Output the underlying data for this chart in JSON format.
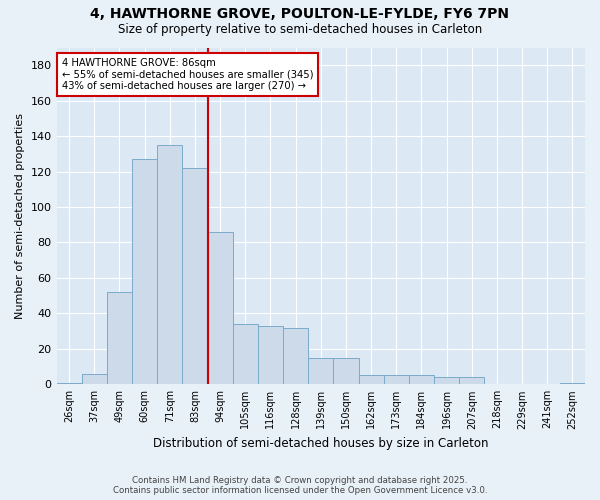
{
  "title_line1": "4, HAWTHORNE GROVE, POULTON-LE-FYLDE, FY6 7PN",
  "title_line2": "Size of property relative to semi-detached houses in Carleton",
  "xlabel": "Distribution of semi-detached houses by size in Carleton",
  "ylabel": "Number of semi-detached properties",
  "bin_labels": [
    "26sqm",
    "37sqm",
    "49sqm",
    "60sqm",
    "71sqm",
    "83sqm",
    "94sqm",
    "105sqm",
    "116sqm",
    "128sqm",
    "139sqm",
    "150sqm",
    "162sqm",
    "173sqm",
    "184sqm",
    "196sqm",
    "207sqm",
    "218sqm",
    "229sqm",
    "241sqm",
    "252sqm"
  ],
  "bar_values": [
    1,
    6,
    52,
    127,
    135,
    122,
    86,
    34,
    33,
    32,
    15,
    15,
    5,
    5,
    5,
    4,
    4,
    0,
    0,
    0,
    1
  ],
  "bar_color": "#ccdaea",
  "bar_edge_color": "#7aaacb",
  "vline_x": 5.5,
  "vline_color": "#cc0000",
  "annotation_title": "4 HAWTHORNE GROVE: 86sqm",
  "annotation_line1": "← 55% of semi-detached houses are smaller (345)",
  "annotation_line2": "43% of semi-detached houses are larger (270) →",
  "annotation_box_color": "#ffffff",
  "annotation_box_edge": "#cc0000",
  "ylim": [
    0,
    190
  ],
  "yticks": [
    0,
    20,
    40,
    60,
    80,
    100,
    120,
    140,
    160,
    180
  ],
  "footer_line1": "Contains HM Land Registry data © Crown copyright and database right 2025.",
  "footer_line2": "Contains public sector information licensed under the Open Government Licence v3.0.",
  "bg_color": "#e8f0f8",
  "plot_bg_color": "#dce8f4"
}
